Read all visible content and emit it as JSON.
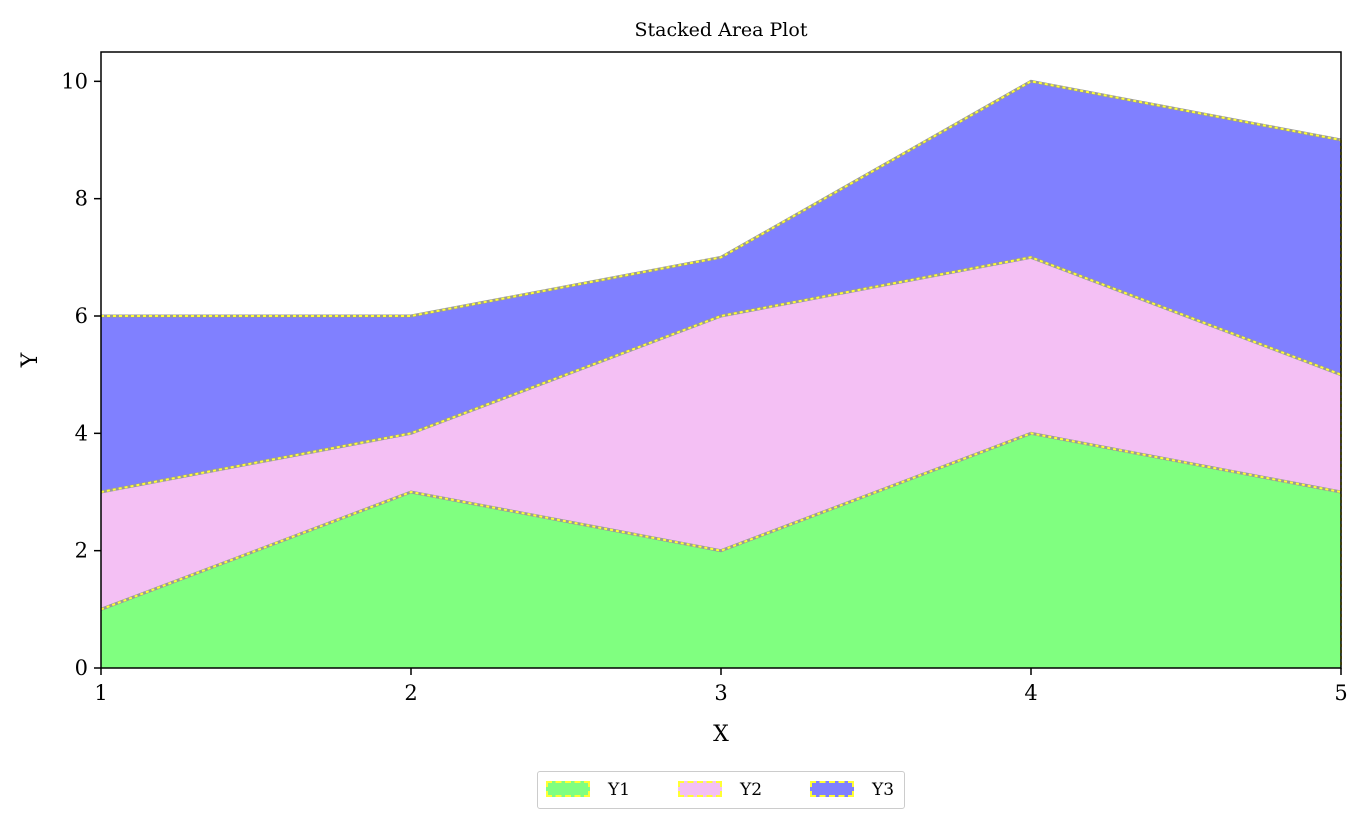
{
  "chart_data": {
    "type": "area",
    "stacked": true,
    "title": "Stacked Area Plot",
    "xlabel": "X",
    "ylabel": "Y",
    "x": [
      1,
      2,
      3,
      4,
      5
    ],
    "xlim": [
      1,
      5
    ],
    "ylim": [
      0,
      10.5
    ],
    "xticks": [
      "1",
      "2",
      "3",
      "4",
      "5"
    ],
    "yticks": [
      "0",
      "2",
      "4",
      "6",
      "8",
      "10"
    ],
    "grid": false,
    "legend_position": "bottom-center",
    "series": [
      {
        "name": "Y1",
        "values": [
          1,
          3,
          2,
          4,
          3
        ],
        "color": "#80ff80"
      },
      {
        "name": "Y2",
        "values": [
          2,
          1,
          4,
          3,
          2
        ],
        "color": "#f4c0f4"
      },
      {
        "name": "Y3",
        "values": [
          3,
          2,
          1,
          3,
          4
        ],
        "color": "#8080ff"
      }
    ],
    "edge_color": "#ffff33"
  }
}
